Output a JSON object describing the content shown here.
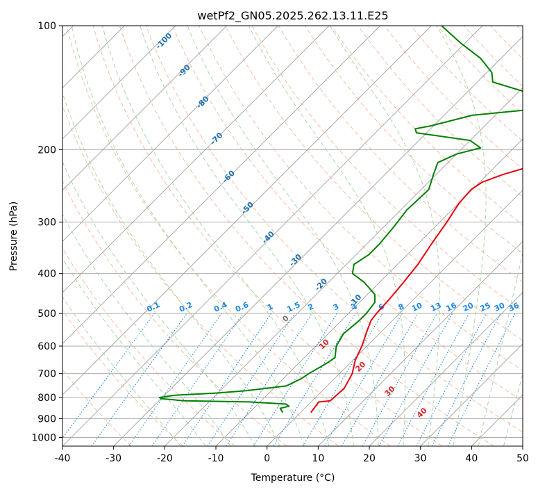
{
  "chart_data": {
    "type": "line",
    "diagram": "skew-T log-P",
    "title": "wetPf2_GN05.2025.262.13.11.E25",
    "xlabel": "Temperature (°C)",
    "ylabel": "Pressure (hPa)",
    "xlim": [
      -40,
      50
    ],
    "ylim": [
      1050,
      100
    ],
    "y_scale": "log",
    "grid": true,
    "x_ticks": [
      -40,
      -30,
      -20,
      -10,
      0,
      10,
      20,
      30,
      40,
      50
    ],
    "y_ticks": [
      100,
      200,
      300,
      400,
      500,
      600,
      700,
      800,
      900,
      1000
    ],
    "series": [
      {
        "role": "temperature",
        "color": "#e8000b",
        "points": [
          [
            870,
            2.0
          ],
          [
            820,
            1.5
          ],
          [
            815,
            3.5
          ],
          [
            760,
            3.8
          ],
          [
            700,
            2.5
          ],
          [
            650,
            0.5
          ],
          [
            600,
            -1.0
          ],
          [
            550,
            -3.0
          ],
          [
            520,
            -4.2
          ],
          [
            500,
            -4.5
          ],
          [
            460,
            -4.8
          ],
          [
            420,
            -5.3
          ],
          [
            380,
            -6.0
          ],
          [
            340,
            -7.3
          ],
          [
            300,
            -8.6
          ],
          [
            270,
            -9.9
          ],
          [
            250,
            -10.2
          ],
          [
            240,
            -9.5
          ],
          [
            230,
            -7.0
          ],
          [
            220,
            -3.2
          ],
          [
            200,
            2.0
          ],
          [
            185,
            7.4
          ],
          [
            175,
            11.5
          ],
          [
            165,
            15.5
          ],
          [
            160,
            17.2
          ],
          [
            153,
            17.5
          ],
          [
            145,
            16.0
          ],
          [
            140,
            15.1
          ],
          [
            135,
            14.7
          ],
          [
            125,
            13.8
          ],
          [
            115,
            11.2
          ],
          [
            107,
            8.5
          ],
          [
            100,
            6.9
          ]
        ]
      },
      {
        "role": "dewpoint",
        "color": "#008000",
        "points": [
          [
            870,
            -3.5
          ],
          [
            850,
            -4.8
          ],
          [
            840,
            -3.5
          ],
          [
            830,
            -4.5
          ],
          [
            820,
            -12.0
          ],
          [
            815,
            -25.0
          ],
          [
            805,
            -30.0
          ],
          [
            800,
            -30.5
          ],
          [
            790,
            -28.0
          ],
          [
            780,
            -20.0
          ],
          [
            770,
            -15.0
          ],
          [
            750,
            -8.0
          ],
          [
            720,
            -6.5
          ],
          [
            700,
            -6.0
          ],
          [
            660,
            -4.5
          ],
          [
            640,
            -4.0
          ],
          [
            600,
            -6.0
          ],
          [
            560,
            -7.0
          ],
          [
            520,
            -6.5
          ],
          [
            500,
            -6.5
          ],
          [
            470,
            -7.0
          ],
          [
            450,
            -8.5
          ],
          [
            420,
            -13.0
          ],
          [
            400,
            -17.0
          ],
          [
            380,
            -18.5
          ],
          [
            360,
            -17.5
          ],
          [
            340,
            -17.5
          ],
          [
            310,
            -18.0
          ],
          [
            280,
            -18.8
          ],
          [
            250,
            -18.5
          ],
          [
            230,
            -20.5
          ],
          [
            215,
            -22.0
          ],
          [
            205,
            -20.0
          ],
          [
            198,
            -16.5
          ],
          [
            190,
            -20.0
          ],
          [
            182,
            -32.0
          ],
          [
            178,
            -33.0
          ],
          [
            175,
            -30.5
          ],
          [
            165,
            -24.5
          ],
          [
            160,
            -14.5
          ],
          [
            155,
            -13.0
          ],
          [
            145,
            -18.5
          ],
          [
            137,
            -27.0
          ],
          [
            130,
            -29.0
          ],
          [
            120,
            -34.0
          ],
          [
            110,
            -41.0
          ],
          [
            100,
            -48.0
          ]
        ]
      }
    ],
    "dry_adiabat_labels": [
      "-100",
      "-90",
      "-80",
      "-70",
      "-60",
      "-50",
      "-40",
      "-30",
      "-20",
      "-10"
    ],
    "mixing_ratio_labels": [
      "0.1",
      "0.2",
      "0.4",
      "0.6",
      "1",
      "1.5",
      "2",
      "3",
      "4",
      "6",
      "8",
      "10",
      "13",
      "16",
      "20",
      "25",
      "30",
      "36"
    ],
    "moist_adiabat_labels": [
      "0",
      "10",
      "20",
      "30",
      "40"
    ],
    "colors": {
      "temperature": "#e8000b",
      "dewpoint": "#008000",
      "isotherm": "#a0a0a0",
      "dry_adiabat": "#f4a582",
      "moist_adiabat": "#9fd39f",
      "mixing_ratio": "#1e88e5",
      "dry_label": "#1f6fb2",
      "moist_label_zero": "#777777",
      "moist_label": "#d62728"
    }
  }
}
